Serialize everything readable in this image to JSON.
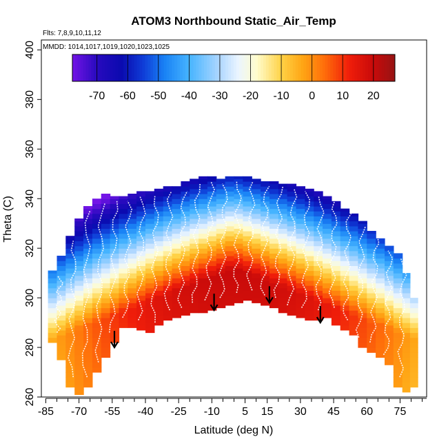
{
  "chart_data": {
    "type": "heatmap",
    "title": "ATOM3 Northbound Static_Air_Temp",
    "flights_note": "Flts: 7,8,9,10,11,12",
    "dates_note": "MMDD: 1014,1017,1019,1020,1023,1025",
    "xlabel": "Latitude (deg N)",
    "ylabel": "Theta (C)",
    "xlim": [
      -87,
      87
    ],
    "ylim": [
      260,
      404
    ],
    "xticks": [
      -85,
      -70,
      -55,
      -40,
      -25,
      -10,
      5,
      15,
      30,
      45,
      60,
      75
    ],
    "xtick_labels": [
      "-85",
      "-70",
      "-55",
      "-40",
      "-25",
      "-10",
      "5",
      "15",
      "30",
      "45",
      "60",
      "75"
    ],
    "yticks": [
      260,
      280,
      300,
      320,
      340,
      360,
      380,
      400
    ],
    "ytick_labels": [
      "260",
      "280",
      "300",
      "320",
      "340",
      "360",
      "380",
      "400"
    ],
    "colorbar": {
      "range": [
        -78,
        27
      ],
      "ticks": [
        -70,
        -60,
        -50,
        -40,
        -30,
        -20,
        -10,
        0,
        10,
        20
      ],
      "tick_labels": [
        "-70",
        "-60",
        "-50",
        "-40",
        "-30",
        "-20",
        "-10",
        "0",
        "10",
        "20"
      ]
    },
    "columns": [
      {
        "lat": -82,
        "bottom": 282,
        "top": 311
      },
      {
        "lat": -78,
        "bottom": 275,
        "top": 317
      },
      {
        "lat": -74,
        "bottom": 264,
        "top": 325
      },
      {
        "lat": -70,
        "bottom": 261,
        "top": 332
      },
      {
        "lat": -66,
        "bottom": 264,
        "top": 337
      },
      {
        "lat": -62,
        "bottom": 270,
        "top": 340
      },
      {
        "lat": -58,
        "bottom": 276,
        "top": 342
      },
      {
        "lat": -54,
        "bottom": 282,
        "top": 341
      },
      {
        "lat": -50,
        "bottom": 288,
        "top": 341
      },
      {
        "lat": -46,
        "bottom": 288,
        "top": 342
      },
      {
        "lat": -42,
        "bottom": 287,
        "top": 343
      },
      {
        "lat": -38,
        "bottom": 286,
        "top": 343
      },
      {
        "lat": -34,
        "bottom": 289,
        "top": 344
      },
      {
        "lat": -30,
        "bottom": 291,
        "top": 345
      },
      {
        "lat": -26,
        "bottom": 292,
        "top": 345
      },
      {
        "lat": -22,
        "bottom": 293,
        "top": 347
      },
      {
        "lat": -18,
        "bottom": 294,
        "top": 348
      },
      {
        "lat": -14,
        "bottom": 294,
        "top": 349
      },
      {
        "lat": -10,
        "bottom": 295,
        "top": 349
      },
      {
        "lat": -6,
        "bottom": 296,
        "top": 348
      },
      {
        "lat": -2,
        "bottom": 297,
        "top": 349
      },
      {
        "lat": 2,
        "bottom": 298,
        "top": 349
      },
      {
        "lat": 6,
        "bottom": 299,
        "top": 349
      },
      {
        "lat": 10,
        "bottom": 298,
        "top": 348
      },
      {
        "lat": 14,
        "bottom": 297,
        "top": 347
      },
      {
        "lat": 18,
        "bottom": 296,
        "top": 347
      },
      {
        "lat": 22,
        "bottom": 294,
        "top": 346
      },
      {
        "lat": 26,
        "bottom": 293,
        "top": 346
      },
      {
        "lat": 30,
        "bottom": 292,
        "top": 345
      },
      {
        "lat": 34,
        "bottom": 291,
        "top": 344
      },
      {
        "lat": 38,
        "bottom": 291,
        "top": 343
      },
      {
        "lat": 42,
        "bottom": 292,
        "top": 341
      },
      {
        "lat": 46,
        "bottom": 289,
        "top": 339
      },
      {
        "lat": 50,
        "bottom": 287,
        "top": 336
      },
      {
        "lat": 54,
        "bottom": 285,
        "top": 334
      },
      {
        "lat": 58,
        "bottom": 280,
        "top": 331
      },
      {
        "lat": 62,
        "bottom": 278,
        "top": 327
      },
      {
        "lat": 66,
        "bottom": 276,
        "top": 324
      },
      {
        "lat": 70,
        "bottom": 273,
        "top": 321
      },
      {
        "lat": 74,
        "bottom": 264,
        "top": 318
      },
      {
        "lat": 78,
        "bottom": 262,
        "top": 310
      },
      {
        "lat": 81,
        "bottom": 264,
        "top": 300
      }
    ],
    "temperature_model": {
      "center_theta_at_equator": 308,
      "surface_temp": 24,
      "cold_top_temp": -72
    },
    "arrows": [
      {
        "lat": -54,
        "theta": 280
      },
      {
        "lat": -9,
        "theta": 295
      },
      {
        "lat": 16,
        "theta": 298
      },
      {
        "lat": 39,
        "theta": 290
      }
    ],
    "flight_profiles_color": "#ffffff"
  }
}
